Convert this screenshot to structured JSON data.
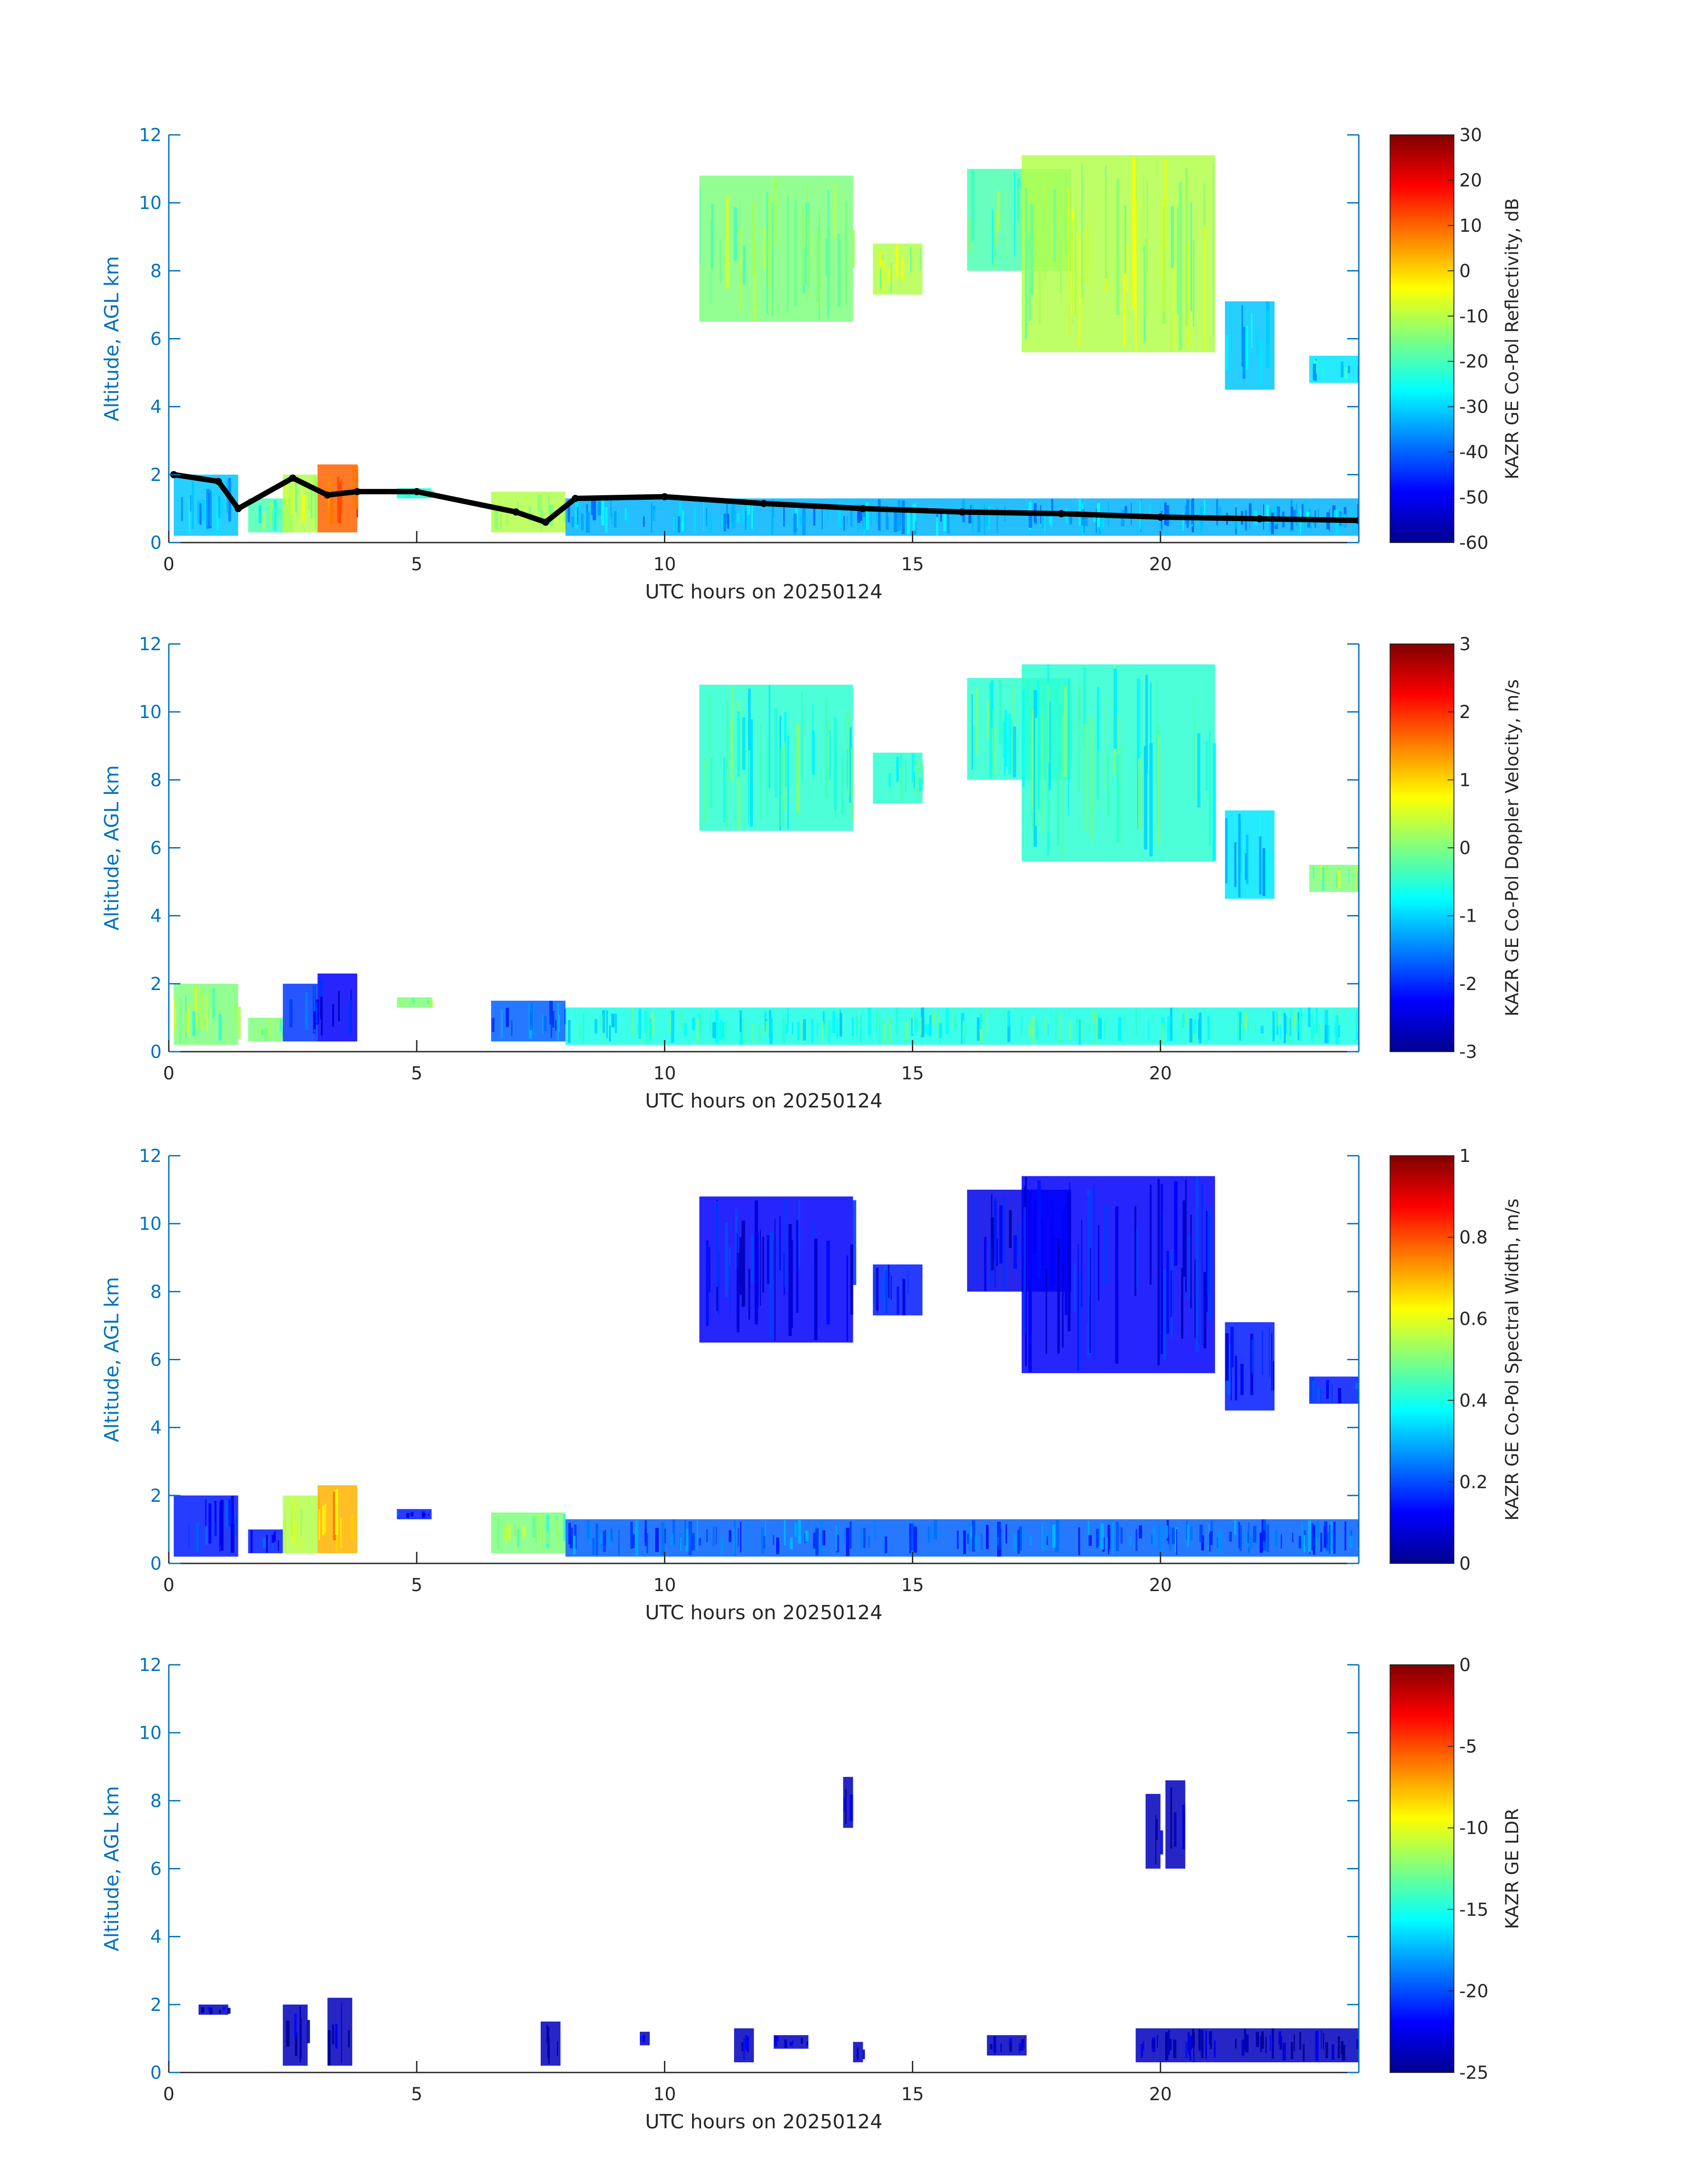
{
  "figure": {
    "colormap": [
      "#00008f",
      "#0000ff",
      "#0080ff",
      "#00ffff",
      "#80ff80",
      "#ffff00",
      "#ff8000",
      "#ff0000",
      "#800000"
    ],
    "axis_color": "#0072bd",
    "text_color": "#262626"
  },
  "chart_data": [
    {
      "type": "heatmap",
      "title": "",
      "xlabel": "UTC hours on 20250124",
      "ylabel": "Altitude, AGL km",
      "xlim": [
        0,
        24
      ],
      "ylim": [
        0,
        12
      ],
      "xticks": [
        "0",
        "5",
        "10",
        "15",
        "20"
      ],
      "yticks": [
        "0",
        "2",
        "4",
        "6",
        "8",
        "10",
        "12"
      ],
      "colorbar": {
        "label": "KAZR GE Co-Pol Reflectivity, dB",
        "range": [
          -60,
          30
        ],
        "ticks": [
          "-60",
          "-50",
          "-40",
          "-30",
          "-20",
          "-10",
          "0",
          "10",
          "20",
          "30"
        ]
      },
      "echoes": [
        {
          "x0": 0.1,
          "x1": 1.4,
          "y0": 0.2,
          "y1": 2.0,
          "level": 0.32
        },
        {
          "x0": 1.6,
          "x1": 2.5,
          "y0": 0.3,
          "y1": 1.3,
          "level": 0.45
        },
        {
          "x0": 2.3,
          "x1": 3.0,
          "y0": 0.3,
          "y1": 2.0,
          "level": 0.55
        },
        {
          "x0": 3.0,
          "x1": 3.8,
          "y0": 0.3,
          "y1": 2.3,
          "level": 0.78
        },
        {
          "x0": 4.6,
          "x1": 5.3,
          "y0": 1.3,
          "y1": 1.6,
          "level": 0.4
        },
        {
          "x0": 6.5,
          "x1": 8.0,
          "y0": 0.3,
          "y1": 1.5,
          "level": 0.55
        },
        {
          "x0": 8.0,
          "x1": 24.0,
          "y0": 0.2,
          "y1": 1.3,
          "level": 0.3
        },
        {
          "x0": 10.7,
          "x1": 13.8,
          "y0": 6.5,
          "y1": 10.8,
          "level": 0.5
        },
        {
          "x0": 14.2,
          "x1": 15.2,
          "y0": 7.3,
          "y1": 8.8,
          "level": 0.55
        },
        {
          "x0": 16.1,
          "x1": 18.2,
          "y0": 8.0,
          "y1": 11.0,
          "level": 0.45
        },
        {
          "x0": 17.2,
          "x1": 21.1,
          "y0": 5.6,
          "y1": 11.4,
          "level": 0.55
        },
        {
          "x0": 21.3,
          "x1": 22.3,
          "y0": 4.5,
          "y1": 7.1,
          "level": 0.32
        },
        {
          "x0": 23.0,
          "x1": 24.0,
          "y0": 4.7,
          "y1": 5.5,
          "level": 0.35
        }
      ],
      "cloud_base": {
        "x": [
          0.1,
          1.0,
          1.4,
          2.5,
          3.2,
          3.8,
          5.0,
          7.0,
          7.6,
          8.2,
          10.0,
          12.0,
          14.0,
          16.0,
          18.0,
          20.0,
          22.0,
          24.0
        ],
        "y": [
          2.0,
          1.8,
          1.0,
          1.9,
          1.4,
          1.5,
          1.5,
          0.9,
          0.6,
          1.3,
          1.35,
          1.15,
          1.0,
          0.9,
          0.85,
          0.75,
          0.7,
          0.65
        ]
      }
    },
    {
      "type": "heatmap",
      "title": "",
      "xlabel": "UTC hours on 20250124",
      "ylabel": "Altitude, AGL km",
      "xlim": [
        0,
        24
      ],
      "ylim": [
        0,
        12
      ],
      "xticks": [
        "0",
        "5",
        "10",
        "15",
        "20"
      ],
      "yticks": [
        "0",
        "2",
        "4",
        "6",
        "8",
        "10",
        "12"
      ],
      "colorbar": {
        "label": "KAZR GE Co-Pol Doppler Velocity, m/s",
        "range": [
          -3,
          3
        ],
        "ticks": [
          "-3",
          "-2",
          "-1",
          "0",
          "1",
          "2",
          "3"
        ]
      },
      "echoes": [
        {
          "x0": 0.1,
          "x1": 1.4,
          "y0": 0.2,
          "y1": 2.0,
          "level": 0.5
        },
        {
          "x0": 1.6,
          "x1": 2.3,
          "y0": 0.3,
          "y1": 1.0,
          "level": 0.5
        },
        {
          "x0": 2.3,
          "x1": 3.0,
          "y0": 0.3,
          "y1": 2.0,
          "level": 0.18
        },
        {
          "x0": 3.0,
          "x1": 3.8,
          "y0": 0.3,
          "y1": 2.3,
          "level": 0.12
        },
        {
          "x0": 4.6,
          "x1": 5.3,
          "y0": 1.3,
          "y1": 1.6,
          "level": 0.5
        },
        {
          "x0": 6.5,
          "x1": 8.0,
          "y0": 0.3,
          "y1": 1.5,
          "level": 0.22
        },
        {
          "x0": 8.0,
          "x1": 24.0,
          "y0": 0.2,
          "y1": 1.3,
          "level": 0.4
        },
        {
          "x0": 10.7,
          "x1": 13.8,
          "y0": 6.5,
          "y1": 10.8,
          "level": 0.42
        },
        {
          "x0": 14.2,
          "x1": 15.2,
          "y0": 7.3,
          "y1": 8.8,
          "level": 0.42
        },
        {
          "x0": 16.1,
          "x1": 18.2,
          "y0": 8.0,
          "y1": 11.0,
          "level": 0.42
        },
        {
          "x0": 17.2,
          "x1": 21.1,
          "y0": 5.6,
          "y1": 11.4,
          "level": 0.42
        },
        {
          "x0": 21.3,
          "x1": 22.3,
          "y0": 4.5,
          "y1": 7.1,
          "level": 0.35
        },
        {
          "x0": 23.0,
          "x1": 24.0,
          "y0": 4.7,
          "y1": 5.5,
          "level": 0.5
        }
      ]
    },
    {
      "type": "heatmap",
      "title": "",
      "xlabel": "UTC hours on 20250124",
      "ylabel": "Altitude, AGL km",
      "xlim": [
        0,
        24
      ],
      "ylim": [
        0,
        12
      ],
      "xticks": [
        "0",
        "5",
        "10",
        "15",
        "20"
      ],
      "yticks": [
        "0",
        "2",
        "4",
        "6",
        "8",
        "10",
        "12"
      ],
      "colorbar": {
        "label": "KAZR GE Co-Pol Spectral Width, m/s",
        "range": [
          0,
          1
        ],
        "ticks": [
          "0",
          "0.2",
          "0.4",
          "0.6",
          "0.8",
          "1"
        ]
      },
      "echoes": [
        {
          "x0": 0.1,
          "x1": 1.4,
          "y0": 0.2,
          "y1": 2.0,
          "level": 0.15
        },
        {
          "x0": 1.6,
          "x1": 2.3,
          "y0": 0.3,
          "y1": 1.0,
          "level": 0.15
        },
        {
          "x0": 2.3,
          "x1": 3.0,
          "y0": 0.3,
          "y1": 2.0,
          "level": 0.55
        },
        {
          "x0": 3.0,
          "x1": 3.8,
          "y0": 0.3,
          "y1": 2.3,
          "level": 0.7
        },
        {
          "x0": 4.6,
          "x1": 5.3,
          "y0": 1.3,
          "y1": 1.6,
          "level": 0.15
        },
        {
          "x0": 6.5,
          "x1": 8.0,
          "y0": 0.3,
          "y1": 1.5,
          "level": 0.5
        },
        {
          "x0": 8.0,
          "x1": 24.0,
          "y0": 0.2,
          "y1": 1.3,
          "level": 0.22
        },
        {
          "x0": 10.7,
          "x1": 13.8,
          "y0": 6.5,
          "y1": 10.8,
          "level": 0.12
        },
        {
          "x0": 14.2,
          "x1": 15.2,
          "y0": 7.3,
          "y1": 8.8,
          "level": 0.15
        },
        {
          "x0": 16.1,
          "x1": 18.2,
          "y0": 8.0,
          "y1": 11.0,
          "level": 0.1
        },
        {
          "x0": 17.2,
          "x1": 21.1,
          "y0": 5.6,
          "y1": 11.4,
          "level": 0.12
        },
        {
          "x0": 21.3,
          "x1": 22.3,
          "y0": 4.5,
          "y1": 7.1,
          "level": 0.15
        },
        {
          "x0": 23.0,
          "x1": 24.0,
          "y0": 4.7,
          "y1": 5.5,
          "level": 0.15
        }
      ]
    },
    {
      "type": "heatmap",
      "title": "",
      "xlabel": "UTC hours on 20250124",
      "ylabel": "Altitude, AGL km",
      "xlim": [
        0,
        24
      ],
      "ylim": [
        0,
        12
      ],
      "xticks": [
        "0",
        "5",
        "10",
        "15",
        "20"
      ],
      "yticks": [
        "0",
        "2",
        "4",
        "6",
        "8",
        "10",
        "12"
      ],
      "colorbar": {
        "label": "KAZR GE LDR",
        "range": [
          -25,
          0
        ],
        "ticks": [
          "-25",
          "-20",
          "-15",
          "-10",
          "-5",
          "0"
        ]
      },
      "echoes": [
        {
          "x0": 0.6,
          "x1": 1.2,
          "y0": 1.7,
          "y1": 2.0,
          "level": 0.05
        },
        {
          "x0": 2.3,
          "x1": 2.8,
          "y0": 0.2,
          "y1": 2.0,
          "level": 0.05
        },
        {
          "x0": 3.2,
          "x1": 3.7,
          "y0": 0.2,
          "y1": 2.2,
          "level": 0.05
        },
        {
          "x0": 7.5,
          "x1": 7.9,
          "y0": 0.2,
          "y1": 1.5,
          "level": 0.05
        },
        {
          "x0": 9.5,
          "x1": 9.7,
          "y0": 0.8,
          "y1": 1.2,
          "level": 0.05
        },
        {
          "x0": 11.4,
          "x1": 11.8,
          "y0": 0.3,
          "y1": 1.3,
          "level": 0.05
        },
        {
          "x0": 12.2,
          "x1": 12.9,
          "y0": 0.7,
          "y1": 1.1,
          "level": 0.05
        },
        {
          "x0": 13.6,
          "x1": 13.8,
          "y0": 7.2,
          "y1": 8.7,
          "level": 0.05
        },
        {
          "x0": 13.8,
          "x1": 14.0,
          "y0": 0.3,
          "y1": 0.9,
          "level": 0.05
        },
        {
          "x0": 16.5,
          "x1": 17.3,
          "y0": 0.5,
          "y1": 1.1,
          "level": 0.05
        },
        {
          "x0": 19.7,
          "x1": 20.0,
          "y0": 6.0,
          "y1": 8.2,
          "level": 0.05
        },
        {
          "x0": 20.1,
          "x1": 20.5,
          "y0": 6.0,
          "y1": 8.6,
          "level": 0.05
        },
        {
          "x0": 19.5,
          "x1": 24.0,
          "y0": 0.3,
          "y1": 1.3,
          "level": 0.05
        }
      ]
    }
  ]
}
